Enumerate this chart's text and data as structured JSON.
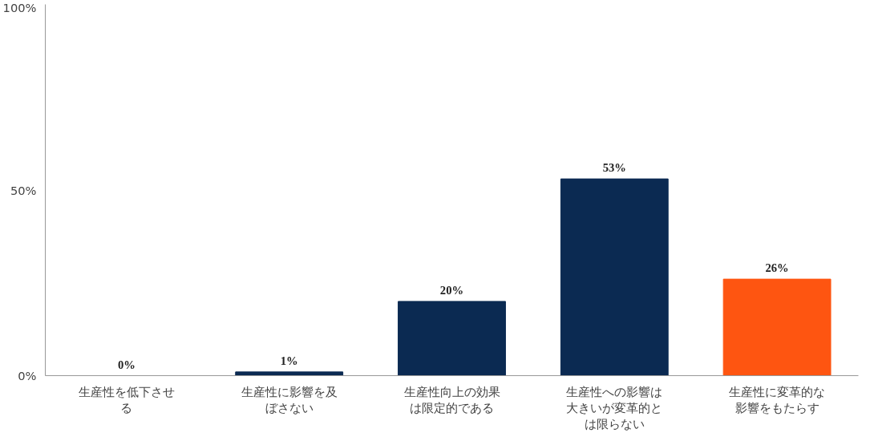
{
  "chart_data": {
    "type": "bar",
    "categories": [
      "生産性を低下させる",
      "生産性に影響を及ぼさない",
      "生産性向上の効果は限定的である",
      "生産性への影響は大きいが変革的とは限らない",
      "生産性に変革的な影響をもたらす"
    ],
    "values": [
      0,
      1,
      20,
      53,
      26
    ],
    "colors": [
      "#0b2a52",
      "#0b2a52",
      "#0b2a52",
      "#0b2a52",
      "#fe5511"
    ],
    "value_labels": [
      "0%",
      "1%",
      "20%",
      "53%",
      "26%"
    ],
    "ylim": [
      0,
      100
    ],
    "yticks": [
      {
        "value": 0,
        "label": "0%"
      },
      {
        "value": 50,
        "label": "50%"
      },
      {
        "value": 100,
        "label": "100%"
      }
    ],
    "grid": false
  }
}
